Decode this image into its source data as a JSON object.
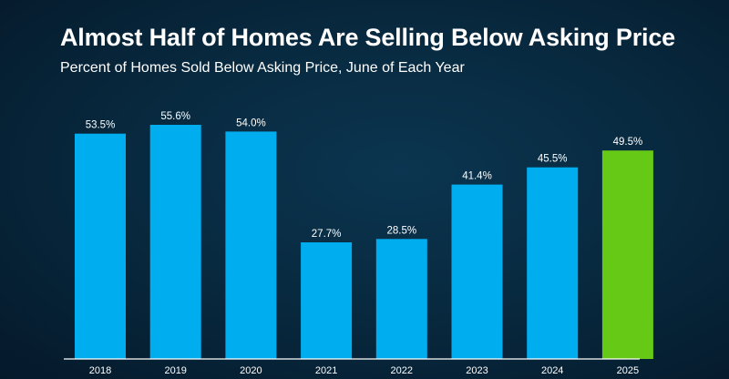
{
  "colors": {
    "bar_default": "#00aeef",
    "bar_highlight": "#66c916",
    "axis": "#ffffff",
    "text": "#ffffff"
  },
  "chart_data": {
    "type": "bar",
    "title": "Almost Half of Homes Are Selling Below Asking Price",
    "subtitle": "Percent of Homes Sold Below Asking Price, June of Each Year",
    "categories": [
      "2018",
      "2019",
      "2020",
      "2021",
      "2022",
      "2023",
      "2024",
      "2025"
    ],
    "values": [
      53.5,
      55.6,
      54.0,
      27.7,
      28.5,
      41.4,
      45.5,
      49.5
    ],
    "value_labels": [
      "53.5%",
      "55.6%",
      "54.0%",
      "27.7%",
      "28.5%",
      "41.4%",
      "45.5%",
      "49.5%"
    ],
    "highlight_category": "2025",
    "ylim": [
      0,
      55.6
    ],
    "grid": false,
    "legend": "none"
  }
}
